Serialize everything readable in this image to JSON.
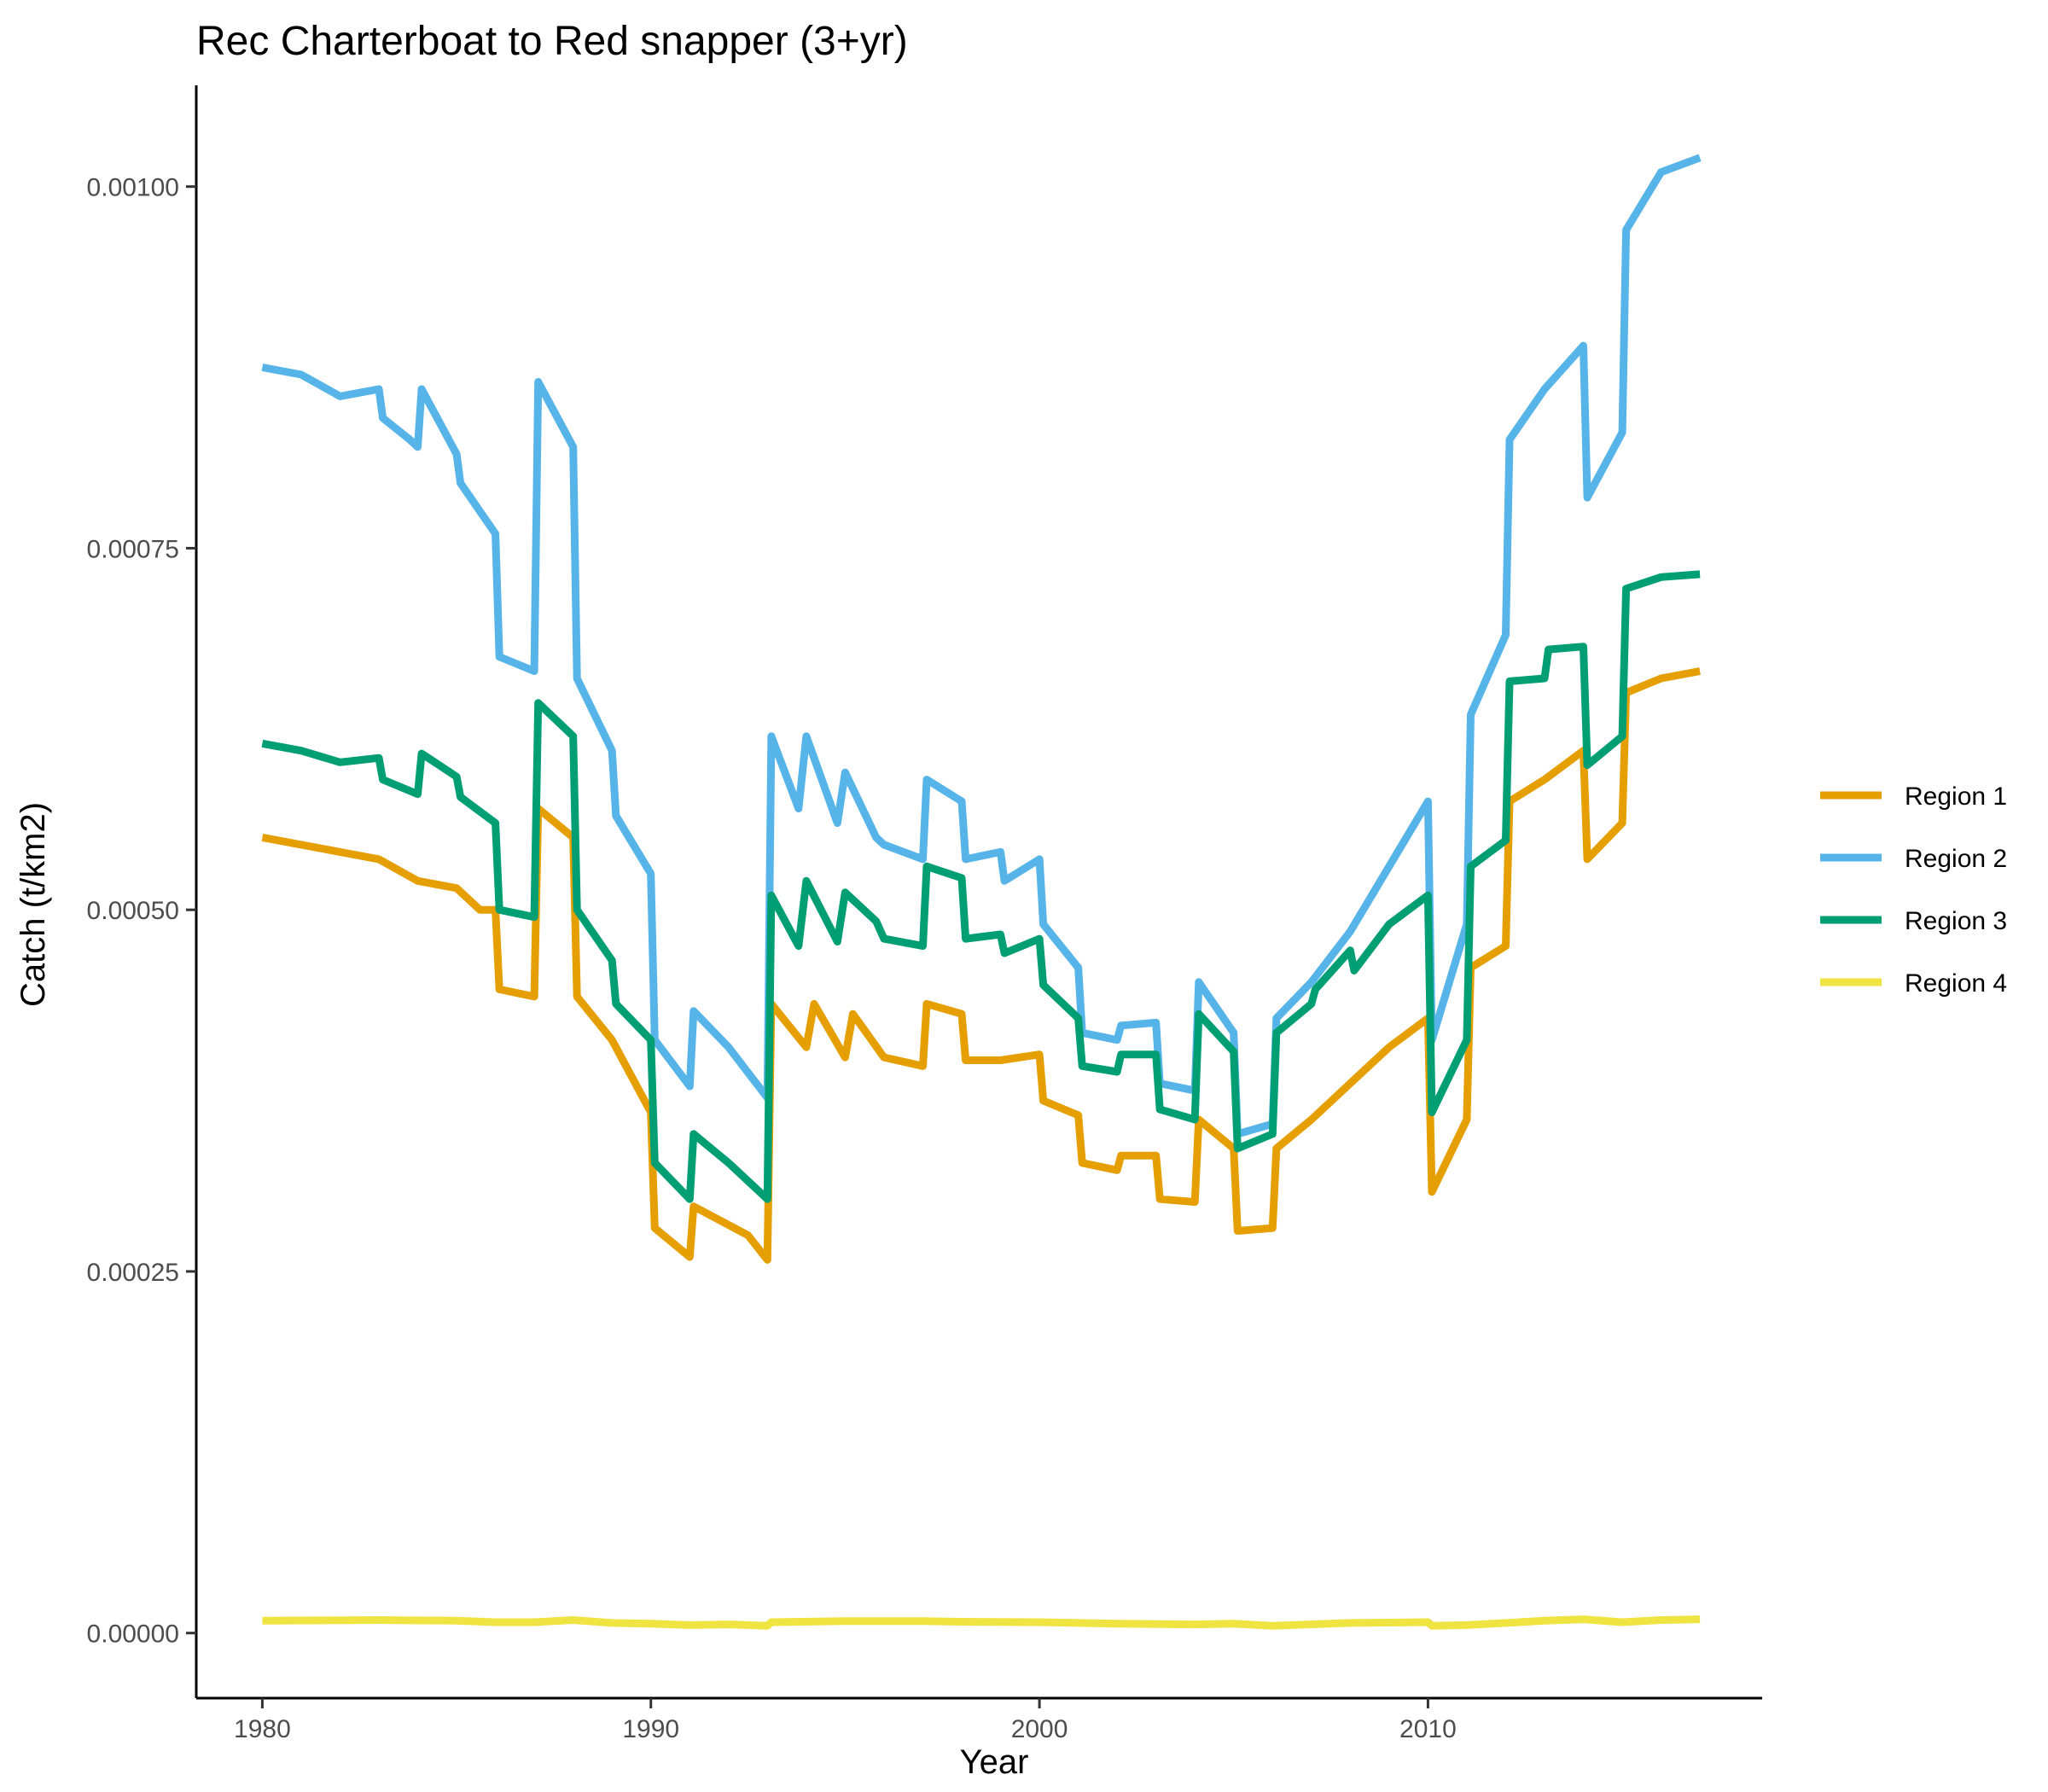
{
  "chart_data": {
    "type": "line",
    "title": "Rec Charterboat to Red snapper (3+yr)",
    "xlabel": "Year",
    "ylabel": "Catch (t/km2)",
    "xlim": [
      1978.3,
      2018.6
    ],
    "ylim": [
      -4.5e-05,
      0.00107
    ],
    "x_ticks": [
      1980,
      1990,
      2000,
      2010
    ],
    "y_ticks": [
      0,
      0.00025,
      0.0005,
      0.00075,
      0.001
    ],
    "y_tick_labels": [
      "0.00000",
      "0.00025",
      "0.00050",
      "0.00075",
      "0.00100"
    ],
    "grid": false,
    "legend_position": "right",
    "series": [
      {
        "name": "Region 1",
        "color": "#E69F00",
        "x": [
          1980,
          1982,
          1983,
          1984,
          1985,
          1985.6,
          1986,
          1986.1,
          1987,
          1987.1,
          1988,
          1988.1,
          1989,
          1990,
          1990.1,
          1991,
          1991.1,
          1992.5,
          1993,
          1993.1,
          1994,
          1994.2,
          1995,
          1995.2,
          1996,
          1997,
          1997.1,
          1998,
          1998.1,
          1999,
          2000,
          2000.1,
          2001,
          2001.1,
          2002,
          2002.1,
          2003,
          2003.1,
          2004,
          2004.1,
          2005,
          2005.1,
          2006,
          2006.1,
          2007,
          2008,
          2009,
          2010,
          2010.1,
          2011,
          2011.1,
          2012,
          2012.1,
          2013,
          2014,
          2014.1,
          2015,
          2015.1,
          2016,
          2017
        ],
        "y": [
          0.00055,
          0.00054,
          0.000535,
          0.00052,
          0.000515,
          0.0005,
          0.0005,
          0.000445,
          0.00044,
          0.00057,
          0.00055,
          0.00044,
          0.00041,
          0.00036,
          0.00028,
          0.00026,
          0.000295,
          0.000275,
          0.000258,
          0.000435,
          0.000405,
          0.000435,
          0.000398,
          0.000428,
          0.000398,
          0.000392,
          0.000435,
          0.000428,
          0.000396,
          0.000396,
          0.0004,
          0.000368,
          0.000358,
          0.000325,
          0.00032,
          0.00033,
          0.00033,
          0.0003,
          0.000298,
          0.000355,
          0.000335,
          0.000278,
          0.00028,
          0.000335,
          0.000355,
          0.00038,
          0.000405,
          0.000425,
          0.000305,
          0.000355,
          0.00046,
          0.000475,
          0.000575,
          0.00059,
          0.00061,
          0.000535,
          0.00056,
          0.00065,
          0.00066,
          0.000665
        ]
      },
      {
        "name": "Region 2",
        "color": "#56B4E9",
        "x": [
          1980,
          1981,
          1982,
          1983,
          1983.1,
          1983.8,
          1984,
          1984.1,
          1985,
          1985.1,
          1986,
          1986.1,
          1987,
          1987.1,
          1988,
          1988.1,
          1989,
          1989.1,
          1990,
          1990.1,
          1991,
          1991.1,
          1992,
          1993,
          1993.1,
          1993.8,
          1994,
          1994.8,
          1995,
          1995.8,
          1996,
          1997,
          1997.1,
          1998,
          1998.1,
          1999,
          1999.1,
          2000,
          2000.1,
          2001,
          2001.1,
          2002,
          2002.1,
          2003,
          2003.1,
          2004,
          2004.1,
          2005,
          2005.1,
          2006,
          2006.1,
          2007,
          2008,
          2009,
          2010,
          2010.1,
          2011,
          2011.1,
          2012,
          2012.1,
          2013,
          2014,
          2014.1,
          2015,
          2015.1,
          2016,
          2017
        ],
        "y": [
          0.000875,
          0.00087,
          0.000855,
          0.00086,
          0.00084,
          0.000825,
          0.00082,
          0.00086,
          0.000815,
          0.000795,
          0.00076,
          0.000675,
          0.000665,
          0.000865,
          0.00082,
          0.00066,
          0.00061,
          0.000565,
          0.000525,
          0.00041,
          0.000378,
          0.00043,
          0.000405,
          0.00037,
          0.00062,
          0.00057,
          0.00062,
          0.00056,
          0.000595,
          0.00055,
          0.000545,
          0.000535,
          0.00059,
          0.000575,
          0.000535,
          0.00054,
          0.00052,
          0.000535,
          0.00049,
          0.00046,
          0.000415,
          0.00041,
          0.00042,
          0.000422,
          0.00038,
          0.000375,
          0.00045,
          0.000415,
          0.000345,
          0.000352,
          0.000425,
          0.00045,
          0.000485,
          0.00053,
          0.000575,
          0.00041,
          0.00049,
          0.000635,
          0.00069,
          0.000825,
          0.00086,
          0.00089,
          0.000785,
          0.00083,
          0.00097,
          0.00101,
          0.00102
        ]
      },
      {
        "name": "Region 3",
        "color": "#009E73",
        "x": [
          1980,
          1981,
          1982,
          1983,
          1983.1,
          1984,
          1984.1,
          1985,
          1985.1,
          1986,
          1986.1,
          1987,
          1987.1,
          1988,
          1988.1,
          1989,
          1989.1,
          1990,
          1990.1,
          1991,
          1991.1,
          1992,
          1993,
          1993.1,
          1993.8,
          1994,
          1994.8,
          1995,
          1995.8,
          1996,
          1997,
          1997.1,
          1998,
          1998.1,
          1999,
          1999.1,
          2000,
          2000.1,
          2001,
          2001.1,
          2002,
          2002.1,
          2003,
          2003.1,
          2004,
          2004.1,
          2005,
          2005.1,
          2006,
          2006.1,
          2007,
          2007.1,
          2008,
          2008.1,
          2009,
          2010,
          2010.1,
          2011,
          2011.1,
          2012,
          2012.1,
          2013,
          2013.1,
          2014,
          2014.1,
          2015,
          2015.1,
          2016,
          2017
        ],
        "y": [
          0.000615,
          0.00061,
          0.000602,
          0.000605,
          0.00059,
          0.00058,
          0.000608,
          0.000592,
          0.000578,
          0.00056,
          0.0005,
          0.000495,
          0.000643,
          0.00062,
          0.0005,
          0.000465,
          0.000435,
          0.00041,
          0.000325,
          0.0003,
          0.000345,
          0.000325,
          0.0003,
          0.00051,
          0.000475,
          0.00052,
          0.000478,
          0.000512,
          0.000492,
          0.00048,
          0.000475,
          0.00053,
          0.000522,
          0.00048,
          0.000483,
          0.00047,
          0.00048,
          0.000448,
          0.000425,
          0.000392,
          0.000388,
          0.0004,
          0.0004,
          0.000362,
          0.000355,
          0.000428,
          0.000402,
          0.000335,
          0.000345,
          0.000415,
          0.000435,
          0.000445,
          0.000472,
          0.000458,
          0.00049,
          0.00051,
          0.00036,
          0.00041,
          0.00053,
          0.000548,
          0.000658,
          0.00066,
          0.00068,
          0.000682,
          0.0006,
          0.00062,
          0.000722,
          0.00073,
          0.000732
        ]
      },
      {
        "name": "Region 4",
        "color": "#F0E442",
        "x": [
          1980,
          1983,
          1985,
          1986,
          1987,
          1988,
          1989,
          1990,
          1991,
          1992,
          1993,
          1993.1,
          1995,
          1997,
          1998,
          2000,
          2002,
          2004,
          2005,
          2006,
          2008,
          2010,
          2010.1,
          2011,
          2012,
          2013,
          2014,
          2015,
          2016,
          2017
        ],
        "y": [
          8.5e-06,
          9e-06,
          8.5e-06,
          7.5e-06,
          7.5e-06,
          9e-06,
          7e-06,
          6.5e-06,
          5.5e-06,
          6e-06,
          5e-06,
          7.5e-06,
          8.2e-06,
          8.2e-06,
          7.8e-06,
          7.5e-06,
          6.5e-06,
          6e-06,
          6.5e-06,
          5e-06,
          7e-06,
          7.5e-06,
          5e-06,
          5.5e-06,
          7e-06,
          8.5e-06,
          9.5e-06,
          7.5e-06,
          9e-06,
          9.5e-06
        ]
      }
    ]
  }
}
